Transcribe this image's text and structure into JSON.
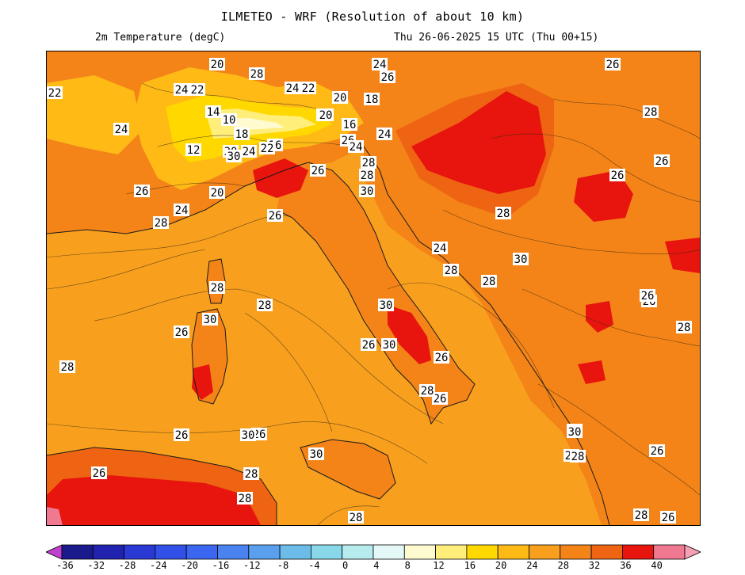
{
  "header": {
    "title": "ILMETEO - WRF (Resolution of about 10 km)",
    "variable": "2m Temperature (degC)",
    "valid_time": "Thu 26-06-2025 15 UTC (Thu 00+15)"
  },
  "colorbar": {
    "labels": [
      "-36",
      "-32",
      "-28",
      "-24",
      "-20",
      "-16",
      "-12",
      "-8",
      "-4",
      "0",
      "4",
      "8",
      "12",
      "16",
      "20",
      "24",
      "28",
      "32",
      "36",
      "40"
    ],
    "colors": [
      "#1a1a8c",
      "#2222b0",
      "#2a38d4",
      "#3050e8",
      "#3a66f0",
      "#4a82f0",
      "#5aa0ee",
      "#6cbcea",
      "#88d8ea",
      "#b6ecee",
      "#e4f8f8",
      "#fffad0",
      "#ffee7a",
      "#ffd800",
      "#ffba16",
      "#f8a01e",
      "#f48418",
      "#ee6412",
      "#e8140e",
      "#f07890"
    ],
    "under_color": "#c040d0",
    "over_color": "#f5a0b4"
  },
  "map": {
    "contour_labels": [
      "20",
      "28",
      "24",
      "26",
      "22",
      "24",
      "22",
      "24",
      "22",
      "18",
      "20",
      "14",
      "10",
      "20",
      "16",
      "18",
      "16",
      "30",
      "24",
      "12",
      "22",
      "20",
      "26",
      "24",
      "24",
      "30",
      "24",
      "28",
      "28",
      "26",
      "26",
      "28",
      "24",
      "20",
      "30",
      "28",
      "26",
      "24",
      "30",
      "28",
      "28",
      "30",
      "30",
      "28",
      "26",
      "26",
      "28",
      "28",
      "26",
      "30",
      "26",
      "28",
      "26",
      "26",
      "30",
      "30",
      "28",
      "28",
      "26",
      "26",
      "26",
      "28",
      "26",
      "26",
      "30",
      "28",
      "30",
      "28",
      "26",
      "28",
      "28",
      "28",
      "26",
      "26"
    ]
  }
}
